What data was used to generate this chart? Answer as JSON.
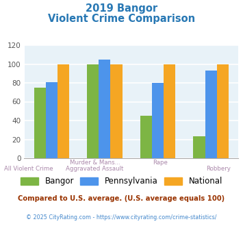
{
  "title_line1": "2019 Bangor",
  "title_line2": "Violent Crime Comparison",
  "categories_top": [
    "",
    "Murder & Mans...",
    "Rape",
    ""
  ],
  "categories_bot": [
    "All Violent Crime",
    "Aggravated Assault",
    "",
    "Robbery"
  ],
  "series": {
    "Bangor": [
      75,
      100,
      45,
      23
    ],
    "Pennsylvania": [
      81,
      105,
      80,
      93
    ],
    "National": [
      100,
      100,
      100,
      100
    ]
  },
  "colors": {
    "Bangor": "#7db544",
    "Pennsylvania": "#4d94eb",
    "National": "#f5a623"
  },
  "ylim": [
    0,
    120
  ],
  "yticks": [
    0,
    20,
    40,
    60,
    80,
    100,
    120
  ],
  "footnote1": "Compared to U.S. average. (U.S. average equals 100)",
  "footnote2": "© 2025 CityRating.com - https://www.cityrating.com/crime-statistics/",
  "title_color": "#2878b4",
  "footnote1_color": "#993300",
  "footnote2_color": "#4488cc",
  "bg_color": "#e8f2f8",
  "grid_color": "#ffffff",
  "bar_width": 0.22
}
